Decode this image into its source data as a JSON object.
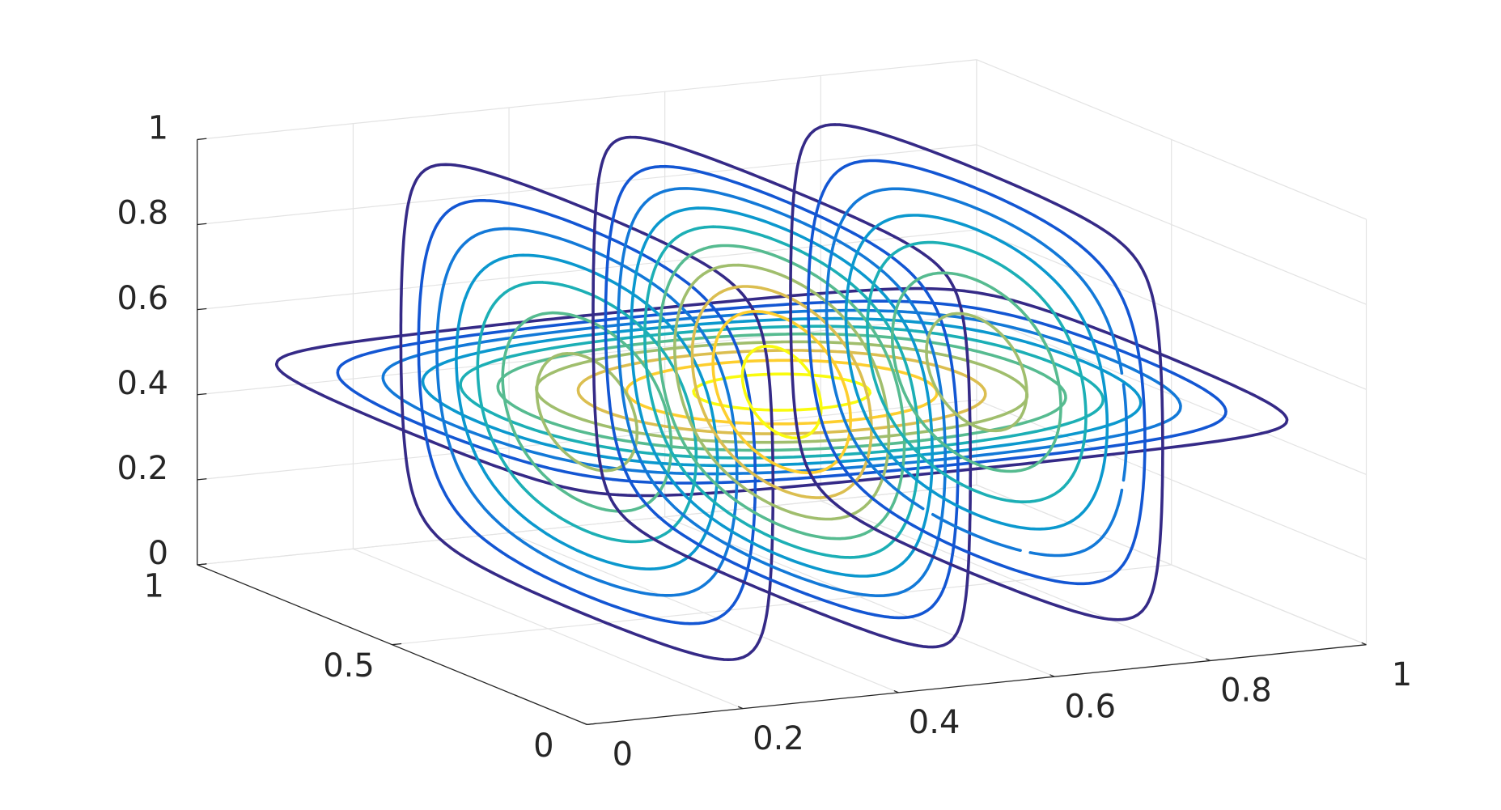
{
  "chart_data": {
    "type": "contourslice",
    "xlim": [
      0,
      1
    ],
    "ylim": [
      0,
      1
    ],
    "zlim": [
      0,
      1
    ],
    "xticks": [
      0,
      0.2,
      0.4,
      0.6,
      0.8,
      1
    ],
    "yticks": [
      0,
      0.5,
      1
    ],
    "zticks": [
      0,
      0.2,
      0.4,
      0.6,
      0.8,
      1
    ],
    "grid": true,
    "slices": {
      "x": [
        0.25,
        0.5,
        0.75
      ],
      "z": [
        0.5
      ]
    },
    "levels": [
      0.05,
      0.15,
      0.25,
      0.35,
      0.45,
      0.55,
      0.65,
      0.75,
      0.85,
      0.95
    ],
    "colormap": [
      "#352a87",
      "#0f5cdd",
      "#1481d6",
      "#06a4ca",
      "#2eb7a4",
      "#87bf77",
      "#d1bb59",
      "#fec832",
      "#f9fb0e"
    ]
  }
}
